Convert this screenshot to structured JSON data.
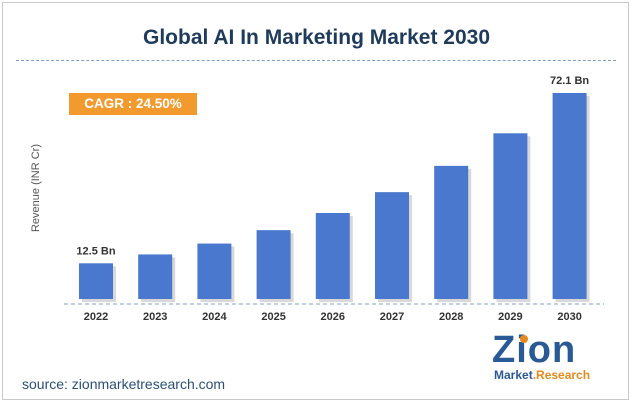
{
  "source_text": "source: zionmarketresearch.com",
  "logo": {
    "brand": "Zion",
    "sub_1": "Market",
    "sub_2": ".Research"
  },
  "colors": {
    "bar": "#4a78cf",
    "title": "#1f3b5c",
    "cagr_bg": "#f29a2e"
  },
  "chart_data": {
    "type": "bar",
    "title": "Global AI In Marketing Market 2030",
    "ylabel": "Revenue (INR Cr)",
    "xlabel": "",
    "categories": [
      "2022",
      "2023",
      "2024",
      "2025",
      "2026",
      "2027",
      "2028",
      "2029",
      "2030"
    ],
    "values": [
      12.5,
      15.6,
      19.4,
      24.1,
      30.1,
      37.4,
      46.6,
      58.0,
      72.1
    ],
    "data_labels": [
      "12.5 Bn",
      "",
      "",
      "",
      "",
      "",
      "",
      "",
      "72.1 Bn"
    ],
    "ylim": [
      0,
      75
    ],
    "grid": false,
    "annotation": "CAGR : 24.50%"
  }
}
